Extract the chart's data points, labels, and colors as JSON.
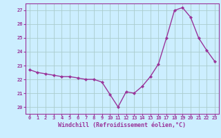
{
  "x": [
    0,
    1,
    2,
    3,
    4,
    5,
    6,
    7,
    8,
    9,
    10,
    11,
    12,
    13,
    14,
    15,
    16,
    17,
    18,
    19,
    20,
    21,
    22,
    23
  ],
  "y": [
    22.7,
    22.5,
    22.4,
    22.3,
    22.2,
    22.2,
    22.1,
    22.0,
    22.0,
    21.8,
    20.9,
    20.0,
    21.1,
    21.0,
    21.5,
    22.2,
    23.1,
    25.0,
    27.0,
    27.2,
    26.5,
    25.0,
    24.1,
    23.3
  ],
  "line_color": "#993399",
  "marker": "D",
  "marker_size": 2.2,
  "line_width": 1.0,
  "bg_color": "#cceeff",
  "grid_color": "#aacccc",
  "tick_color": "#993399",
  "label_color": "#993399",
  "xlabel": "Windchill (Refroidissement éolien,°C)",
  "xlim": [
    -0.5,
    23.5
  ],
  "ylim": [
    19.5,
    27.5
  ],
  "yticks": [
    20,
    21,
    22,
    23,
    24,
    25,
    26,
    27
  ],
  "xticks": [
    0,
    1,
    2,
    3,
    4,
    5,
    6,
    7,
    8,
    9,
    10,
    11,
    12,
    13,
    14,
    15,
    16,
    17,
    18,
    19,
    20,
    21,
    22,
    23
  ],
  "tick_fontsize": 5.0,
  "label_fontsize": 6.0,
  "font_family": "monospace"
}
